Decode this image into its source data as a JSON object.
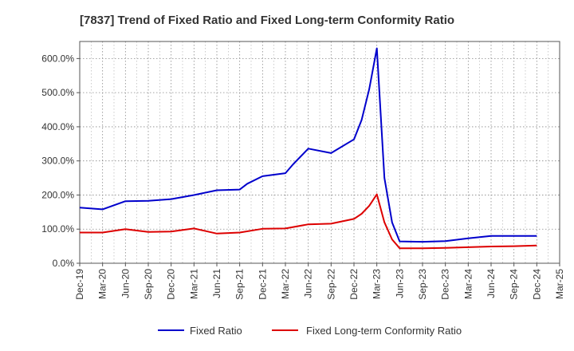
{
  "chart_data": {
    "type": "line",
    "title": "[7837]  Trend of Fixed Ratio and Fixed Long-term Conformity Ratio",
    "xlabel": "",
    "ylabel": "",
    "ylim": [
      0,
      650
    ],
    "y_ticks": [
      0,
      100,
      200,
      300,
      400,
      500,
      600
    ],
    "y_tick_labels": [
      "0.0%",
      "100.0%",
      "200.0%",
      "300.0%",
      "400.0%",
      "500.0%",
      "600.0%"
    ],
    "x_tick_labels": [
      "Dec-19",
      "Mar-20",
      "Jun-20",
      "Sep-20",
      "Dec-20",
      "Mar-21",
      "Jun-21",
      "Sep-21",
      "Dec-21",
      "Mar-22",
      "Jun-22",
      "Sep-22",
      "Dec-22",
      "Mar-23",
      "Jun-23",
      "Sep-23",
      "Dec-23",
      "Mar-24",
      "Jun-24",
      "Sep-24",
      "Dec-24",
      "Mar-25"
    ],
    "grid": true,
    "legend_position": "bottom",
    "series": [
      {
        "name": "Fixed Ratio",
        "color": "#0000cc",
        "points": [
          [
            "Dec-19",
            163
          ],
          [
            "Mar-20",
            158
          ],
          [
            "Jun-20",
            182
          ],
          [
            "Sep-20",
            183
          ],
          [
            "Dec-20",
            188
          ],
          [
            "Mar-21",
            200
          ],
          [
            "Jun-21",
            214
          ],
          [
            "Sep-21",
            216
          ],
          [
            "Oct-21",
            233
          ],
          [
            "Dec-21",
            255
          ],
          [
            "Mar-22",
            264
          ],
          [
            "Apr-22",
            290
          ],
          [
            "Jun-22",
            336
          ],
          [
            "Sep-22",
            323
          ],
          [
            "Dec-22",
            363
          ],
          [
            "Jan-23",
            420
          ],
          [
            "Feb-23",
            510
          ],
          [
            "Mar-23",
            630
          ],
          [
            "Apr-23",
            250
          ],
          [
            "May-23",
            120
          ],
          [
            "Jun-23",
            64
          ],
          [
            "Sep-23",
            63
          ],
          [
            "Dec-23",
            65
          ],
          [
            "Mar-24",
            73
          ],
          [
            "Jun-24",
            80
          ],
          [
            "Sep-24",
            80
          ],
          [
            "Dec-24",
            80
          ]
        ]
      },
      {
        "name": "Fixed Long-term Conformity Ratio",
        "color": "#dd0000",
        "points": [
          [
            "Dec-19",
            90
          ],
          [
            "Mar-20",
            90
          ],
          [
            "Jun-20",
            100
          ],
          [
            "Sep-20",
            92
          ],
          [
            "Dec-20",
            93
          ],
          [
            "Mar-21",
            102
          ],
          [
            "Jun-21",
            87
          ],
          [
            "Sep-21",
            90
          ],
          [
            "Dec-21",
            101
          ],
          [
            "Mar-22",
            102
          ],
          [
            "Jun-22",
            114
          ],
          [
            "Sep-22",
            116
          ],
          [
            "Dec-22",
            130
          ],
          [
            "Jan-23",
            145
          ],
          [
            "Feb-23",
            168
          ],
          [
            "Mar-23",
            202
          ],
          [
            "Apr-23",
            120
          ],
          [
            "May-23",
            70
          ],
          [
            "Jun-23",
            44
          ],
          [
            "Sep-23",
            44
          ],
          [
            "Dec-23",
            45
          ],
          [
            "Mar-24",
            47
          ],
          [
            "Jun-24",
            49
          ],
          [
            "Sep-24",
            50
          ],
          [
            "Dec-24",
            52
          ]
        ]
      }
    ]
  }
}
